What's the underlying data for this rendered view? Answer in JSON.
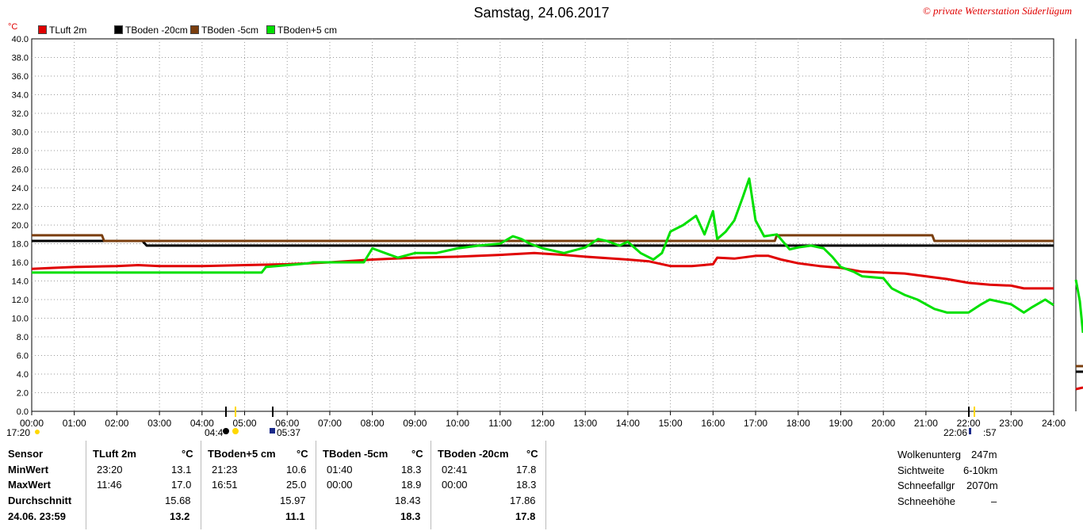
{
  "title": "Samstag, 24.06.2017",
  "copyright": "© private Wetterstation Süderlügum",
  "legend": [
    {
      "label": "TLuft 2m",
      "color": "#e00000"
    },
    {
      "label": "TBoden -20cm",
      "color": "#000000"
    },
    {
      "label": "TBoden -5cm",
      "color": "#7a3e0e"
    },
    {
      "label": "TBoden+5 cm",
      "color": "#00e000"
    }
  ],
  "sun": {
    "sunset_prev": "17:20",
    "sunrise_left": "04:4",
    "sunrise_right": "05:37",
    "sunset_left": "22:06",
    "sunset_right": ":57"
  },
  "chart_data": {
    "type": "line",
    "ylabel": "°C",
    "ylim": [
      0,
      40
    ],
    "yticks": [
      "0.0",
      "2.0",
      "4.0",
      "6.0",
      "8.0",
      "10.0",
      "12.0",
      "14.0",
      "16.0",
      "18.0",
      "20.0",
      "22.0",
      "24.0",
      "26.0",
      "28.0",
      "30.0",
      "32.0",
      "34.0",
      "36.0",
      "38.0",
      "40.0"
    ],
    "xlim": [
      "00:00",
      "24:00"
    ],
    "xticks": [
      "00:00",
      "01:00",
      "02:00",
      "03:00",
      "04:00",
      "05:00",
      "06:00",
      "07:00",
      "08:00",
      "09:00",
      "10:00",
      "11:00",
      "12:00",
      "13:00",
      "14:00",
      "15:00",
      "16:00",
      "17:00",
      "18:00",
      "19:00",
      "20:00",
      "21:00",
      "22:00",
      "23:00",
      "24:00"
    ],
    "grid": true,
    "legend_position": "top-left",
    "series": [
      {
        "name": "TLuft 2m",
        "color": "#e00000",
        "x": [
          0,
          0.5,
          1,
          2,
          2.5,
          3,
          4,
          5,
          6,
          7,
          8,
          9,
          10,
          11,
          11.8,
          12.5,
          13,
          14,
          14.5,
          15,
          15.5,
          16,
          16.1,
          16.5,
          17,
          17.3,
          17.6,
          18,
          18.5,
          19,
          19.5,
          20,
          20.5,
          21,
          21.5,
          22,
          22.5,
          23,
          23.3,
          24
        ],
        "values": [
          15.3,
          15.4,
          15.5,
          15.6,
          15.7,
          15.6,
          15.6,
          15.7,
          15.8,
          16.0,
          16.3,
          16.5,
          16.6,
          16.8,
          17.0,
          16.8,
          16.6,
          16.3,
          16.1,
          15.6,
          15.6,
          15.8,
          16.5,
          16.4,
          16.7,
          16.7,
          16.3,
          15.9,
          15.6,
          15.4,
          15.0,
          14.9,
          14.8,
          14.5,
          14.2,
          13.8,
          13.6,
          13.5,
          13.2,
          13.2
        ]
      },
      {
        "name": "TBoden -20cm",
        "color": "#000000",
        "x": [
          0,
          2.6,
          2.7,
          24
        ],
        "values": [
          18.3,
          18.3,
          17.8,
          17.8
        ]
      },
      {
        "name": "TBoden -5cm",
        "color": "#7a3e0e",
        "x": [
          0,
          1.65,
          1.7,
          17.45,
          17.5,
          21.15,
          21.2,
          24
        ],
        "values": [
          18.9,
          18.9,
          18.3,
          18.3,
          18.9,
          18.9,
          18.3,
          18.3
        ]
      },
      {
        "name": "TBoden+5 cm",
        "color": "#00e000",
        "x": [
          0,
          5.4,
          5.5,
          6.5,
          6.6,
          7.0,
          7.8,
          8.0,
          8.3,
          8.6,
          9.0,
          9.5,
          10.0,
          10.5,
          11.0,
          11.3,
          11.5,
          11.7,
          12.0,
          12.5,
          13.0,
          13.3,
          13.5,
          13.8,
          14.0,
          14.3,
          14.6,
          14.8,
          15.0,
          15.3,
          15.6,
          15.8,
          16.0,
          16.1,
          16.3,
          16.5,
          16.7,
          16.85,
          17.0,
          17.2,
          17.5,
          17.8,
          18.0,
          18.3,
          18.6,
          18.8,
          19.0,
          19.3,
          19.5,
          20.0,
          20.2,
          20.5,
          20.8,
          21.0,
          21.2,
          21.5,
          22.0,
          22.3,
          22.5,
          23.0,
          23.3,
          23.5,
          23.8,
          24.0
        ],
        "values": [
          14.9,
          14.9,
          15.5,
          15.9,
          16.0,
          16.0,
          16.0,
          17.5,
          17.0,
          16.5,
          17.0,
          17.0,
          17.5,
          17.8,
          18.0,
          18.8,
          18.5,
          18.0,
          17.5,
          17.0,
          17.6,
          18.5,
          18.3,
          17.8,
          18.2,
          17.0,
          16.3,
          17.0,
          19.3,
          20.0,
          21.0,
          19.0,
          21.5,
          18.5,
          19.3,
          20.5,
          23.0,
          25.0,
          20.5,
          18.8,
          19.0,
          17.4,
          17.6,
          17.8,
          17.5,
          16.6,
          15.5,
          15.0,
          14.5,
          14.3,
          13.2,
          12.5,
          12.0,
          11.5,
          11.0,
          10.6,
          10.6,
          11.5,
          12.0,
          11.5,
          10.6,
          11.2,
          12.0,
          11.4
        ]
      }
    ]
  },
  "stats": {
    "headers": {
      "sensor": "Sensor",
      "tluft": "TLuft 2m",
      "tluft_unit": "°C",
      "tb5": "TBoden+5 cm",
      "tb5_unit": "°C",
      "tbm5": "TBoden -5cm",
      "tbm5_unit": "°C",
      "tbm20": "TBoden -20cm",
      "tbm20_unit": "°C"
    },
    "rows": {
      "min_label": "MinWert",
      "max_label": "MaxWert",
      "avg_label": "Durchschnitt",
      "last_label": "24.06. 23:59"
    },
    "tluft": {
      "min_time": "23:20",
      "min": "13.1",
      "max_time": "11:46",
      "max": "17.0",
      "avg": "15.68",
      "last": "13.2"
    },
    "tb5": {
      "min_time": "21:23",
      "min": "10.6",
      "max_time": "16:51",
      "max": "25.0",
      "avg": "15.97",
      "last": "11.1"
    },
    "tbm5": {
      "min_time": "01:40",
      "min": "18.3",
      "max_time": "00:00",
      "max": "18.9",
      "avg": "18.43",
      "last": "18.3"
    },
    "tbm20": {
      "min_time": "02:41",
      "min": "17.8",
      "max_time": "00:00",
      "max": "18.3",
      "avg": "17.86",
      "last": "17.8"
    }
  },
  "info": [
    {
      "label": "Wolkenunterg",
      "value": "247m"
    },
    {
      "label": "Sichtweite",
      "value": "6-10km"
    },
    {
      "label": "Schneefallgr",
      "value": "2070m"
    },
    {
      "label": "Schneehöhe",
      "value": "–"
    }
  ]
}
